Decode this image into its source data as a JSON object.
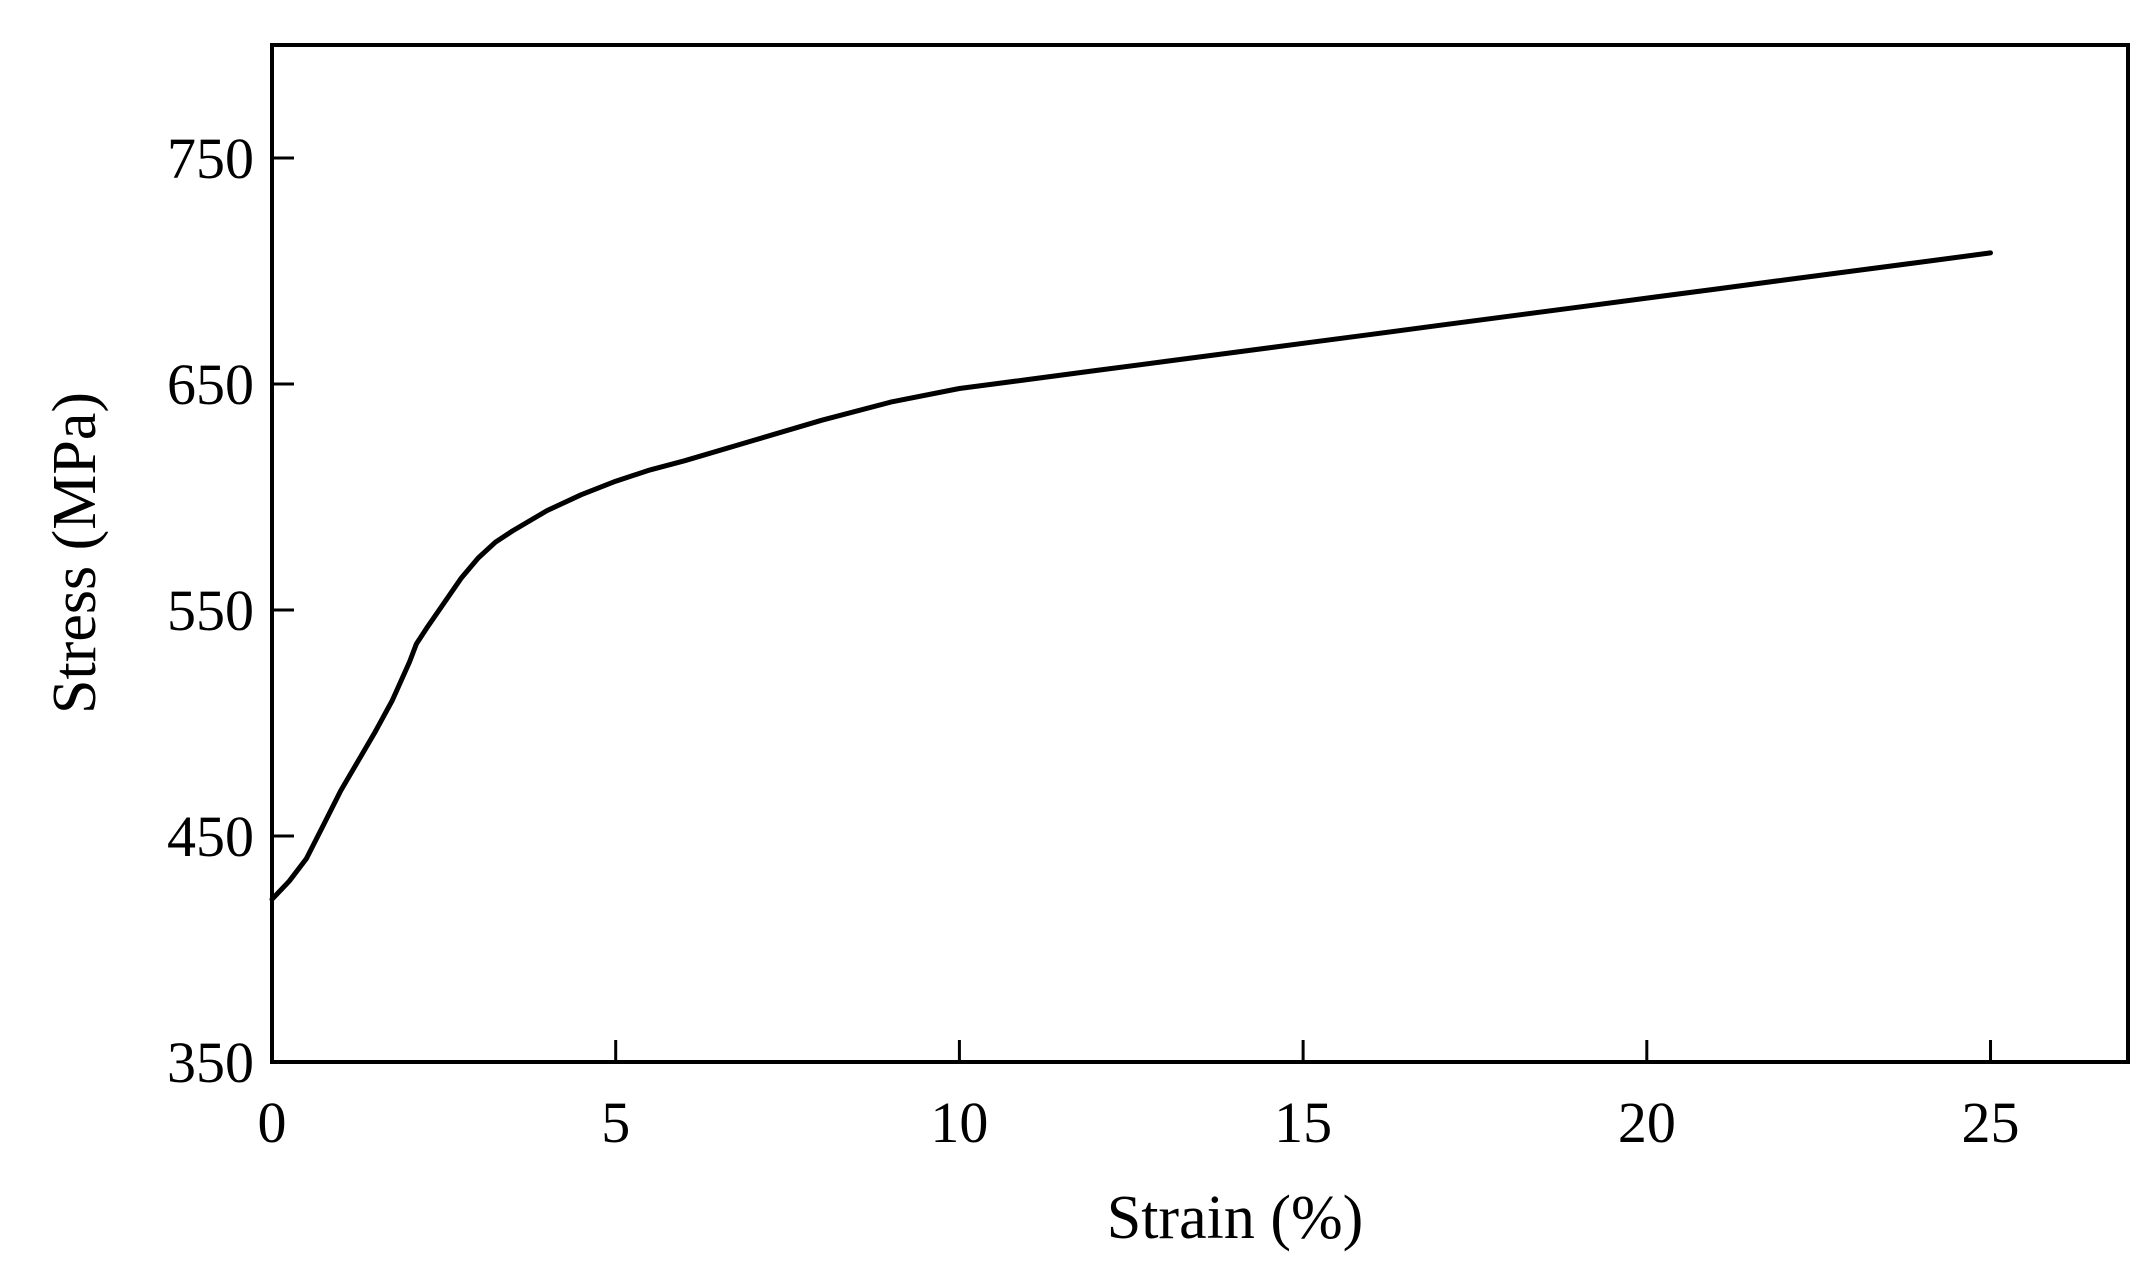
{
  "chart_data": {
    "type": "line",
    "title": "",
    "xlabel": "Strain (%)",
    "ylabel": "Stress (MPa)",
    "xlim": [
      0,
      27
    ],
    "ylim": [
      350,
      800
    ],
    "xticks": [
      0,
      5,
      10,
      15,
      20,
      25
    ],
    "yticks": [
      350,
      450,
      550,
      650,
      750
    ],
    "grid": false,
    "legend": "none",
    "line_color": "#000000",
    "series": [
      {
        "x": [
          0,
          0.25,
          0.5,
          0.75,
          1.0,
          1.25,
          1.5,
          1.75,
          2.0,
          2.1,
          2.25,
          2.5,
          2.75,
          3.0,
          3.25,
          3.5,
          4.0,
          4.5,
          5.0,
          5.5,
          6.0,
          7.0,
          8.0,
          9.0,
          10.0,
          11.0,
          12.0,
          13.0,
          14.0,
          15.0,
          16.0,
          17.0,
          18.0,
          19.0,
          20.0,
          21.0,
          22.0,
          23.0,
          24.0,
          25.0
        ],
        "y": [
          422,
          430,
          440,
          455,
          470,
          483,
          496,
          510,
          527,
          535,
          542,
          553,
          564,
          573,
          580,
          585,
          594,
          601,
          607,
          612,
          616,
          625,
          634,
          642,
          648,
          652,
          656,
          660,
          664,
          668,
          672,
          676,
          680,
          684,
          688,
          692,
          696,
          700,
          704,
          708
        ]
      }
    ]
  }
}
